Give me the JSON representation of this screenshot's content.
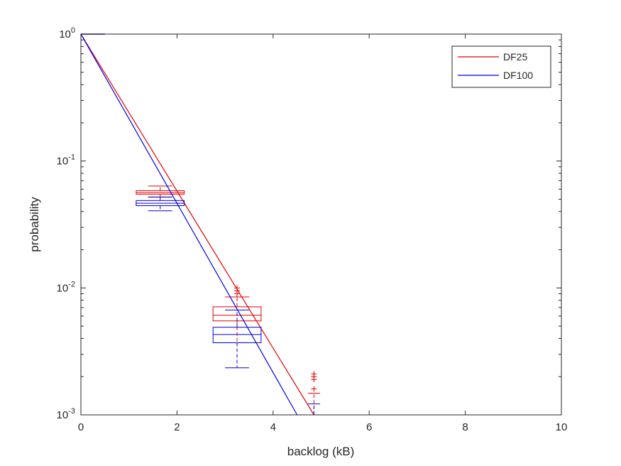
{
  "chart_data": {
    "type": "line",
    "xlabel": "backlog (kB)",
    "ylabel": "probability",
    "xlim": [
      0,
      10
    ],
    "ylim": [
      0.001,
      1
    ],
    "yscale": "log",
    "grid": false,
    "legend_position": "top-right",
    "x_ticks": [
      0,
      2,
      4,
      6,
      8,
      10
    ],
    "x_tick_labels": [
      "0",
      "2",
      "4",
      "6",
      "8",
      "10"
    ],
    "y_ticks": [
      1,
      0.1,
      0.01,
      0.001
    ],
    "y_tick_labels": [
      {
        "base": "10",
        "exp": "0"
      },
      {
        "base": "10",
        "exp": "-1"
      },
      {
        "base": "10",
        "exp": "-2"
      },
      {
        "base": "10",
        "exp": "-3"
      }
    ],
    "series": [
      {
        "name": "DF25",
        "color": "#e50000",
        "line": {
          "x": [
            0,
            4.85
          ],
          "y": [
            1,
            0.001
          ]
        },
        "boxes": [
          {
            "x": 1.65,
            "width": 1.0,
            "whisker_low": 0.052,
            "q1": 0.0548,
            "median": 0.0563,
            "q3": 0.0583,
            "whisker_high": 0.0635,
            "outliers": []
          },
          {
            "x": 3.25,
            "width": 1.0,
            "whisker_low": 0.0037,
            "q1": 0.0055,
            "median": 0.0061,
            "q3": 0.0071,
            "whisker_high": 0.0085,
            "outliers": [
              0.009,
              0.0095,
              0.01
            ]
          },
          {
            "x": 4.85,
            "width": 0.5,
            "whisker_low": 0.001,
            "q1": 0.001,
            "median": 0.001,
            "q3": 0.001,
            "whisker_high": 0.00148,
            "outliers": [
              0.0016,
              0.0019,
              0.002,
              0.0021
            ]
          }
        ]
      },
      {
        "name": "DF100",
        "color": "#0000e5",
        "line": {
          "x": [
            0,
            4.5
          ],
          "y": [
            1,
            0.001
          ]
        },
        "boxes": [
          {
            "x": 1.65,
            "width": 1.0,
            "whisker_low": 0.0405,
            "q1": 0.0445,
            "median": 0.0465,
            "q3": 0.0488,
            "whisker_high": 0.052,
            "outliers": []
          },
          {
            "x": 3.25,
            "width": 1.0,
            "whisker_low": 0.00235,
            "q1": 0.0037,
            "median": 0.0043,
            "q3": 0.0049,
            "whisker_high": 0.0067,
            "outliers": []
          },
          {
            "x": 4.85,
            "width": 0.5,
            "whisker_low": 0.001,
            "q1": 0.001,
            "median": 0.001,
            "q3": 0.001,
            "whisker_high": 0.00122,
            "outliers": []
          }
        ],
        "extra_segment": {
          "x": [
            0,
            0.5
          ],
          "y": [
            1,
            1
          ]
        }
      }
    ]
  }
}
